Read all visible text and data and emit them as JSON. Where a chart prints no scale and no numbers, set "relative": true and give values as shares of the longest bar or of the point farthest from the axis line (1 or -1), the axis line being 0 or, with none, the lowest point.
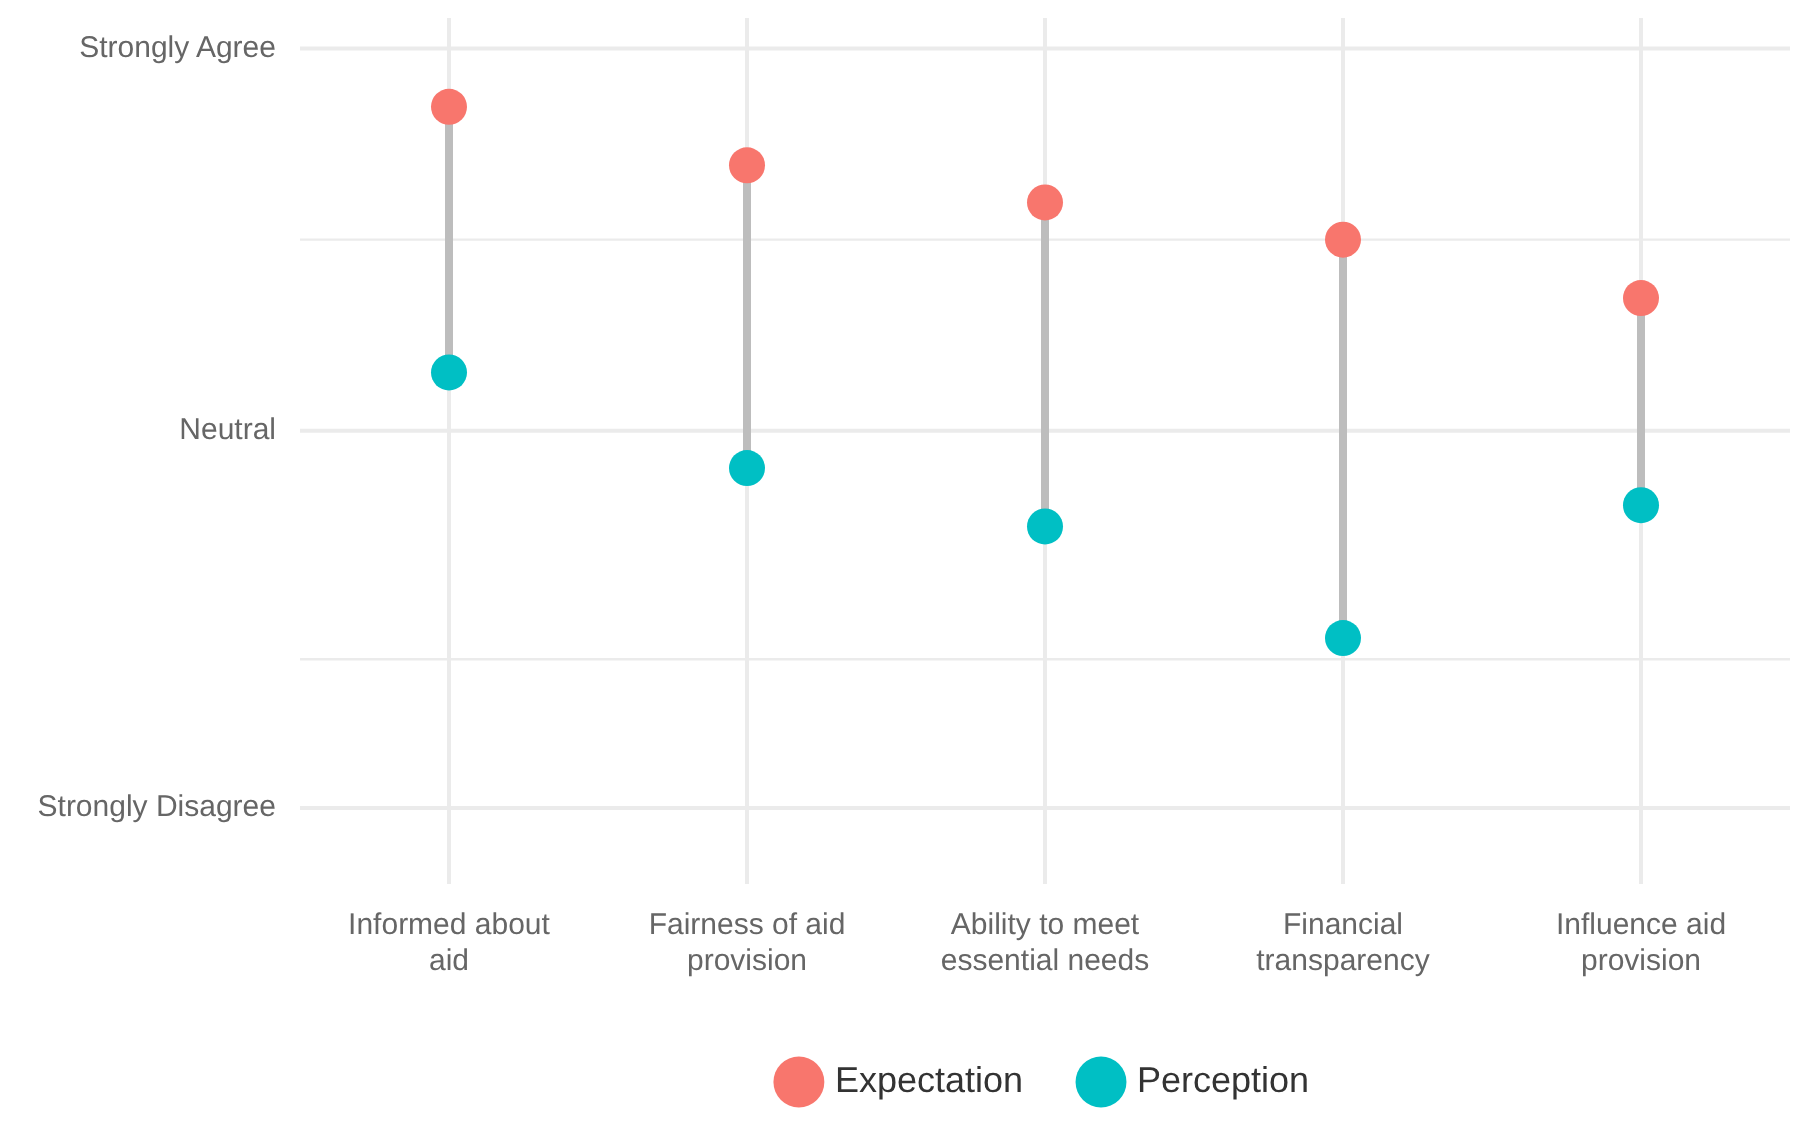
{
  "chart_data": {
    "type": "scatter",
    "relative": true,
    "categories": [
      "Informed about aid",
      "Fairness of aid provision",
      "Ability to meet essential needs",
      "Financial transparency",
      "Influence aid provision"
    ],
    "series": [
      {
        "name": "Expectation",
        "color": "#f8766d",
        "values": [
          1.0,
          0.89,
          0.82,
          0.75,
          0.64
        ]
      },
      {
        "name": "Perception",
        "color": "#00bfc4",
        "values": [
          0.5,
          0.32,
          0.21,
          0,
          0.25
        ]
      }
    ],
    "ref_lines": [
      {
        "axis": "y",
        "value": 1.11,
        "label": "Strongly Agree"
      },
      {
        "axis": "y",
        "value": 0.75,
        "label": null
      },
      {
        "axis": "y",
        "value": 0.39,
        "label": "Neutral"
      },
      {
        "axis": "y",
        "value": -0.04,
        "label": null
      },
      {
        "axis": "y",
        "value": -0.32,
        "label": "Strongly Disagree"
      }
    ],
    "grid": "x",
    "legend": "bottom",
    "marker": "circle"
  }
}
